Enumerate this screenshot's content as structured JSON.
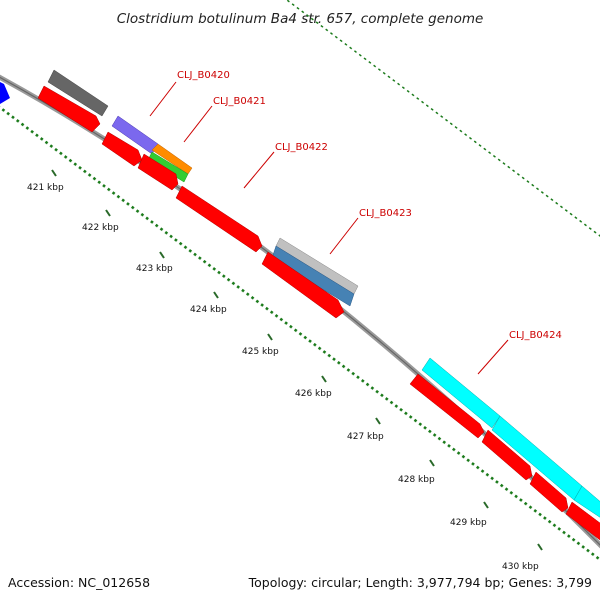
{
  "title": "Clostridium botulinum Ba4 str. 657, complete genome",
  "footer": {
    "accession": "Accession: NC_012658",
    "topology": "Topology: circular; Length: 3,977,794 bp; Genes: 3,799"
  },
  "gene_labels": [
    "CLJ_B0420",
    "CLJ_B0421",
    "CLJ_B0422",
    "CLJ_B0423",
    "CLJ_B0424"
  ],
  "axis_ticks": [
    "421 kbp",
    "422 kbp",
    "423 kbp",
    "424 kbp",
    "425 kbp",
    "426 kbp",
    "427 kbp",
    "428 kbp",
    "429 kbp",
    "430 kbp"
  ],
  "colors": {
    "cds": "#ff0000",
    "backbone": "#888888",
    "gc_dots": "#1a7a1a",
    "label": "#cc0000",
    "track_gray": "#666666",
    "track_purple": "#7b68ee",
    "track_orange": "#ff8c00",
    "track_green": "#32cd32",
    "track_steelblue": "#4682b4",
    "track_silver": "#c0c0c0",
    "track_cyan": "#00ffff",
    "track_blue": "#0000ff"
  }
}
